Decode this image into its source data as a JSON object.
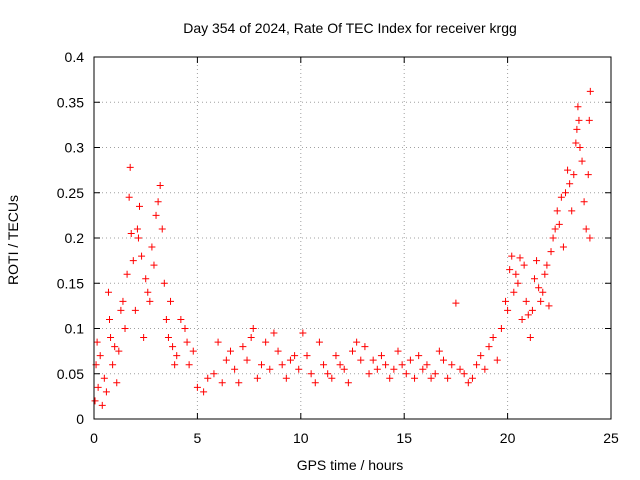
{
  "chart_data": {
    "type": "scatter",
    "title": "Day 354 of 2024, Rate Of TEC Index for receiver krgg",
    "xlabel": "GPS time / hours",
    "ylabel": "ROTI / TECUs",
    "xlim": [
      0,
      25
    ],
    "ylim": [
      0,
      0.4
    ],
    "x_ticks": [
      "0",
      "5",
      "10",
      "15",
      "20",
      "25"
    ],
    "y_ticks": [
      "0",
      "0.05",
      "0.1",
      "0.15",
      "0.2",
      "0.25",
      "0.3",
      "0.35",
      "0.4"
    ],
    "grid": true,
    "marker": "+",
    "color": "#ff0000",
    "series": [
      {
        "name": "",
        "points": [
          [
            0.05,
            0.02
          ],
          [
            0.1,
            0.06
          ],
          [
            0.15,
            0.085
          ],
          [
            0.2,
            0.035
          ],
          [
            0.3,
            0.07
          ],
          [
            0.4,
            0.015
          ],
          [
            0.5,
            0.045
          ],
          [
            0.6,
            0.03
          ],
          [
            0.7,
            0.14
          ],
          [
            0.75,
            0.11
          ],
          [
            0.8,
            0.09
          ],
          [
            0.9,
            0.06
          ],
          [
            1.0,
            0.08
          ],
          [
            1.1,
            0.04
          ],
          [
            1.2,
            0.075
          ],
          [
            1.3,
            0.12
          ],
          [
            1.4,
            0.13
          ],
          [
            1.5,
            0.1
          ],
          [
            1.6,
            0.16
          ],
          [
            1.7,
            0.245
          ],
          [
            1.75,
            0.278
          ],
          [
            1.8,
            0.205
          ],
          [
            1.9,
            0.175
          ],
          [
            2.0,
            0.12
          ],
          [
            2.1,
            0.21
          ],
          [
            2.15,
            0.2
          ],
          [
            2.2,
            0.235
          ],
          [
            2.3,
            0.18
          ],
          [
            2.4,
            0.09
          ],
          [
            2.5,
            0.155
          ],
          [
            2.6,
            0.14
          ],
          [
            2.7,
            0.13
          ],
          [
            2.8,
            0.19
          ],
          [
            2.9,
            0.17
          ],
          [
            3.0,
            0.225
          ],
          [
            3.1,
            0.24
          ],
          [
            3.2,
            0.258
          ],
          [
            3.3,
            0.21
          ],
          [
            3.4,
            0.15
          ],
          [
            3.5,
            0.11
          ],
          [
            3.6,
            0.09
          ],
          [
            3.7,
            0.13
          ],
          [
            3.8,
            0.08
          ],
          [
            3.9,
            0.06
          ],
          [
            4.0,
            0.07
          ],
          [
            4.2,
            0.11
          ],
          [
            4.4,
            0.1
          ],
          [
            4.5,
            0.085
          ],
          [
            4.6,
            0.06
          ],
          [
            4.8,
            0.075
          ],
          [
            5.0,
            0.035
          ],
          [
            5.3,
            0.03
          ],
          [
            5.5,
            0.045
          ],
          [
            5.8,
            0.05
          ],
          [
            6.0,
            0.085
          ],
          [
            6.2,
            0.04
          ],
          [
            6.4,
            0.065
          ],
          [
            6.6,
            0.075
          ],
          [
            6.8,
            0.055
          ],
          [
            7.0,
            0.04
          ],
          [
            7.2,
            0.08
          ],
          [
            7.4,
            0.065
          ],
          [
            7.6,
            0.09
          ],
          [
            7.7,
            0.1
          ],
          [
            7.9,
            0.045
          ],
          [
            8.1,
            0.06
          ],
          [
            8.3,
            0.085
          ],
          [
            8.5,
            0.055
          ],
          [
            8.7,
            0.095
          ],
          [
            8.9,
            0.075
          ],
          [
            9.1,
            0.06
          ],
          [
            9.3,
            0.045
          ],
          [
            9.5,
            0.065
          ],
          [
            9.7,
            0.07
          ],
          [
            9.9,
            0.055
          ],
          [
            10.1,
            0.095
          ],
          [
            10.3,
            0.07
          ],
          [
            10.5,
            0.05
          ],
          [
            10.7,
            0.04
          ],
          [
            10.9,
            0.085
          ],
          [
            11.1,
            0.06
          ],
          [
            11.3,
            0.05
          ],
          [
            11.5,
            0.045
          ],
          [
            11.7,
            0.07
          ],
          [
            11.9,
            0.06
          ],
          [
            12.1,
            0.055
          ],
          [
            12.3,
            0.04
          ],
          [
            12.5,
            0.075
          ],
          [
            12.7,
            0.085
          ],
          [
            12.9,
            0.065
          ],
          [
            13.1,
            0.08
          ],
          [
            13.3,
            0.05
          ],
          [
            13.5,
            0.065
          ],
          [
            13.7,
            0.055
          ],
          [
            13.9,
            0.07
          ],
          [
            14.1,
            0.06
          ],
          [
            14.3,
            0.045
          ],
          [
            14.5,
            0.055
          ],
          [
            14.7,
            0.075
          ],
          [
            14.9,
            0.06
          ],
          [
            15.1,
            0.05
          ],
          [
            15.3,
            0.065
          ],
          [
            15.5,
            0.045
          ],
          [
            15.7,
            0.07
          ],
          [
            15.9,
            0.055
          ],
          [
            16.1,
            0.06
          ],
          [
            16.3,
            0.045
          ],
          [
            16.5,
            0.05
          ],
          [
            16.7,
            0.075
          ],
          [
            16.9,
            0.065
          ],
          [
            17.1,
            0.045
          ],
          [
            17.3,
            0.06
          ],
          [
            17.5,
            0.128
          ],
          [
            17.7,
            0.055
          ],
          [
            17.9,
            0.05
          ],
          [
            18.1,
            0.04
          ],
          [
            18.3,
            0.045
          ],
          [
            18.5,
            0.06
          ],
          [
            18.7,
            0.07
          ],
          [
            18.9,
            0.055
          ],
          [
            19.1,
            0.08
          ],
          [
            19.3,
            0.09
          ],
          [
            19.5,
            0.065
          ],
          [
            19.7,
            0.1
          ],
          [
            19.9,
            0.13
          ],
          [
            20.0,
            0.12
          ],
          [
            20.1,
            0.165
          ],
          [
            20.2,
            0.18
          ],
          [
            20.3,
            0.14
          ],
          [
            20.4,
            0.16
          ],
          [
            20.5,
            0.15
          ],
          [
            20.6,
            0.178
          ],
          [
            20.7,
            0.11
          ],
          [
            20.8,
            0.17
          ],
          [
            20.9,
            0.13
          ],
          [
            21.0,
            0.115
          ],
          [
            21.1,
            0.09
          ],
          [
            21.2,
            0.12
          ],
          [
            21.3,
            0.155
          ],
          [
            21.4,
            0.175
          ],
          [
            21.5,
            0.145
          ],
          [
            21.6,
            0.13
          ],
          [
            21.7,
            0.14
          ],
          [
            21.8,
            0.16
          ],
          [
            21.9,
            0.17
          ],
          [
            22.0,
            0.125
          ],
          [
            22.1,
            0.185
          ],
          [
            22.2,
            0.2
          ],
          [
            22.3,
            0.21
          ],
          [
            22.4,
            0.23
          ],
          [
            22.5,
            0.215
          ],
          [
            22.6,
            0.245
          ],
          [
            22.7,
            0.19
          ],
          [
            22.8,
            0.25
          ],
          [
            22.9,
            0.275
          ],
          [
            23.0,
            0.26
          ],
          [
            23.1,
            0.23
          ],
          [
            23.2,
            0.27
          ],
          [
            23.3,
            0.305
          ],
          [
            23.35,
            0.32
          ],
          [
            23.4,
            0.345
          ],
          [
            23.45,
            0.33
          ],
          [
            23.5,
            0.3
          ],
          [
            23.6,
            0.285
          ],
          [
            23.7,
            0.24
          ],
          [
            23.8,
            0.21
          ],
          [
            23.9,
            0.27
          ],
          [
            23.95,
            0.33
          ],
          [
            24.0,
            0.362
          ],
          [
            23.98,
            0.2
          ]
        ]
      }
    ]
  }
}
